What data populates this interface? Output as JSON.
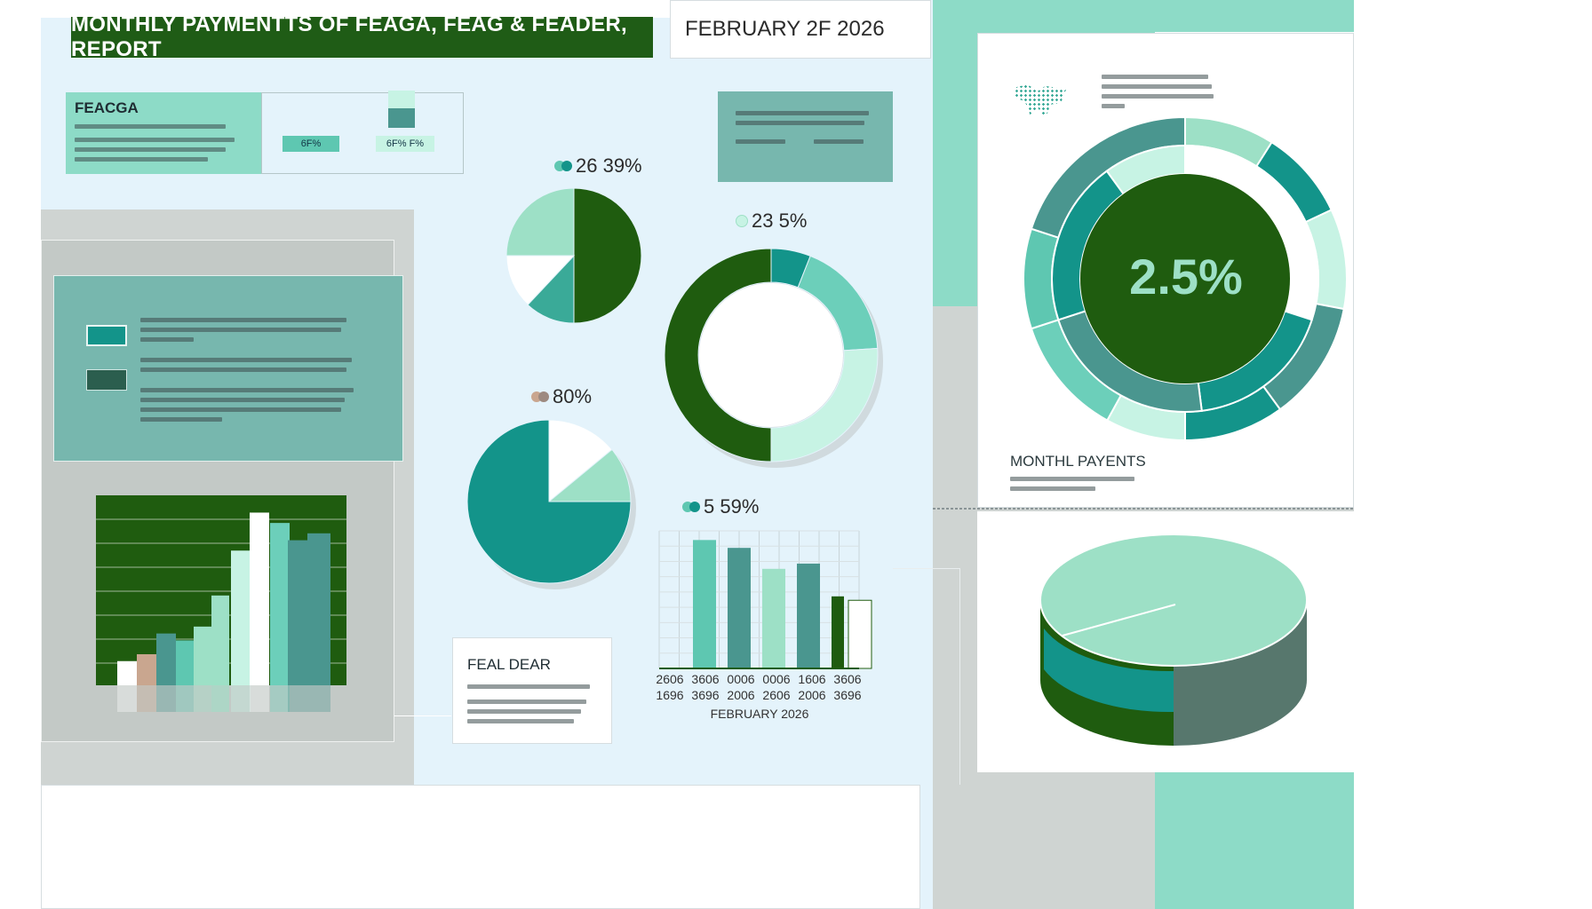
{
  "header": {
    "title": "MONTHLY PAYMENTTS OF FEAGA, FEAG & FEADER, REPORT",
    "date": "FEBRUARY 2F 2026"
  },
  "feacga_card": {
    "title": "FEACGA",
    "box1_label": "6F%",
    "box2_label": "6F% F%"
  },
  "legend_card": {
    "swatch_colors": [
      "#13948a",
      "#2b5e4e"
    ]
  },
  "feal_card": {
    "title": "FEAL DEAR"
  },
  "right_panel": {
    "title": "MONTHL PAYENTS",
    "big_value": "2.5%"
  },
  "colors": {
    "dark_green": "#1f5c0f",
    "teal": "#13948a",
    "mint": "#9de0c6",
    "light_mint": "#c7f3e4",
    "slate_teal": "#4a968f",
    "white": "#ffffff"
  },
  "chart_data": [
    {
      "type": "pie",
      "label": "26 39%",
      "slices": [
        {
          "value": 50,
          "color": "#1f5c0f"
        },
        {
          "value": 12,
          "color": "#3aaa98"
        },
        {
          "value": 13,
          "color": "#ffffff"
        },
        {
          "value": 25,
          "color": "#9de0c6"
        }
      ]
    },
    {
      "type": "pie",
      "label": "23 5%",
      "donut": true,
      "slices": [
        {
          "value": 6,
          "color": "#13948a"
        },
        {
          "value": 18,
          "color": "#6ccfba"
        },
        {
          "value": 26,
          "color": "#c7f3e4"
        },
        {
          "value": 50,
          "color": "#1f5c0f"
        }
      ]
    },
    {
      "type": "pie",
      "label": "80%",
      "slices": [
        {
          "value": 14,
          "color": "#ffffff"
        },
        {
          "value": 11,
          "color": "#9de0c6"
        },
        {
          "value": 75,
          "color": "#13948a"
        }
      ]
    },
    {
      "type": "bar",
      "label": "5 59%",
      "xlabel": "FEBRUARY 2026",
      "categories": [
        "2606\n1696",
        "3606\n3696",
        "0006\n2006",
        "0006\n2606",
        "1606\n2006",
        "3606\n3696"
      ],
      "values": [
        98,
        92,
        76,
        80,
        55,
        52
      ],
      "colors": [
        "#5ec7b1",
        "#4a968f",
        "#9de0c6",
        "#4a968f",
        "#1f5c0f",
        "#ffffff"
      ],
      "ylim": [
        0,
        105
      ],
      "grid": true
    },
    {
      "type": "bar",
      "values": [
        14,
        18,
        30,
        26,
        34,
        52,
        78,
        100,
        94,
        84,
        88
      ],
      "colors": [
        "#ffffff",
        "#c9a68f",
        "#4a968f",
        "#5ec7b1",
        "#9de0c6",
        "#9de0c6",
        "#c7f3e4",
        "#ffffff",
        "#6ccfba",
        "#4a968f",
        "#4a968f"
      ],
      "ylim": [
        0,
        110
      ],
      "grid": true
    },
    {
      "type": "pie",
      "label": "2.5%",
      "donut": true,
      "outer_ring": [
        {
          "value": 9,
          "color": "#9de0c6"
        },
        {
          "value": 9,
          "color": "#13948a"
        },
        {
          "value": 10,
          "color": "#c7f3e4"
        },
        {
          "value": 12,
          "color": "#4a968f"
        },
        {
          "value": 10,
          "color": "#13948a"
        },
        {
          "value": 8,
          "color": "#c7f3e4"
        },
        {
          "value": 12,
          "color": "#6ccfba"
        },
        {
          "value": 10,
          "color": "#5ec7b1"
        },
        {
          "value": 20,
          "color": "#4a968f"
        }
      ]
    },
    {
      "type": "pie",
      "style": "3d",
      "slices": [
        {
          "value": 58,
          "color": "#9de0c6"
        },
        {
          "value": 21,
          "color": "#13948a"
        },
        {
          "value": 21,
          "color": "#1f5c0f"
        }
      ]
    }
  ]
}
